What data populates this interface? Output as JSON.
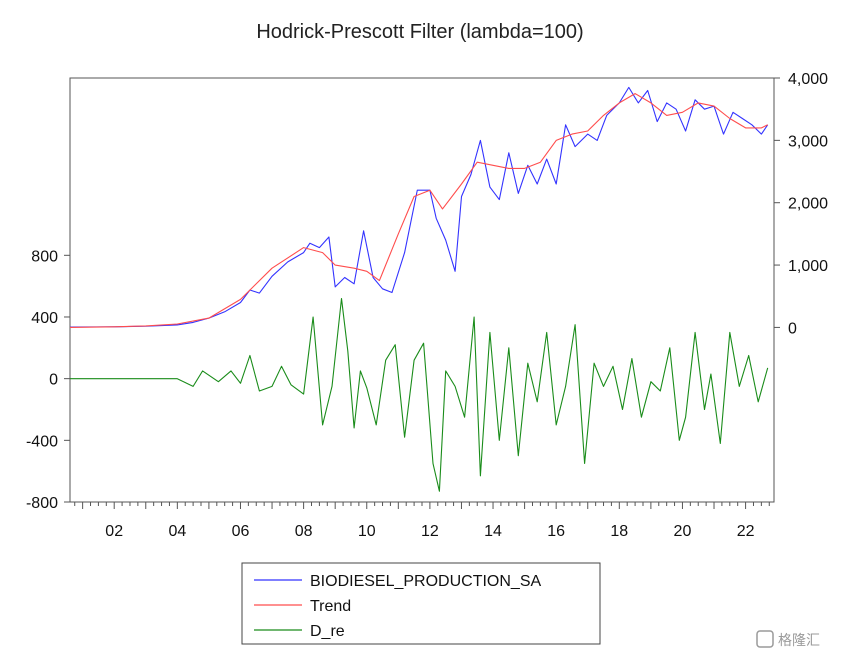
{
  "chart_data": {
    "type": "line",
    "title": "Hodrick-Prescott Filter (lambda=100)",
    "x_axis": {
      "tick_labels": [
        "02",
        "04",
        "06",
        "08",
        "10",
        "12",
        "14",
        "16",
        "18",
        "20",
        "22"
      ],
      "tick_years": [
        2002,
        2004,
        2006,
        2008,
        2010,
        2012,
        2014,
        2016,
        2018,
        2020,
        2022
      ],
      "range": [
        2000.6,
        2022.9
      ]
    },
    "y_left": {
      "tick_labels": [
        "800",
        "400",
        "0",
        "-400",
        "-800"
      ],
      "tick_values": [
        800,
        400,
        0,
        -400,
        -800
      ],
      "range": [
        -800,
        1950
      ]
    },
    "y_right": {
      "tick_labels": [
        "4,000",
        "3,000",
        "2,000",
        "1,000",
        "0"
      ],
      "tick_values": [
        4000,
        3000,
        2000,
        1000,
        0
      ],
      "range": [
        -2800,
        4000
      ]
    },
    "legend": {
      "placement": "bottom"
    },
    "colors": {
      "series": "#3333ff",
      "trend": "#ff4d4d",
      "cycle": "#1a8c1a",
      "frame": "#555555"
    },
    "series": [
      {
        "name": "BIODIESEL_PRODUCTION_SA",
        "axis": "right",
        "x": [
          2000.6,
          2002.0,
          2003.0,
          2004.0,
          2004.5,
          2005.0,
          2005.5,
          2006.0,
          2006.3,
          2006.6,
          2007.0,
          2007.5,
          2008.0,
          2008.2,
          2008.5,
          2008.8,
          2009.0,
          2009.3,
          2009.6,
          2009.9,
          2010.2,
          2010.5,
          2010.8,
          2011.2,
          2011.6,
          2012.0,
          2012.2,
          2012.5,
          2012.8,
          2013.0,
          2013.3,
          2013.6,
          2013.9,
          2014.2,
          2014.5,
          2014.8,
          2015.1,
          2015.4,
          2015.7,
          2016.0,
          2016.3,
          2016.6,
          2017.0,
          2017.3,
          2017.6,
          2018.0,
          2018.3,
          2018.6,
          2018.9,
          2019.2,
          2019.5,
          2019.8,
          2020.1,
          2020.4,
          2020.7,
          2021.0,
          2021.3,
          2021.6,
          2021.9,
          2022.2,
          2022.5,
          2022.7
        ],
        "y": [
          5,
          10,
          20,
          40,
          80,
          150,
          250,
          400,
          600,
          550,
          820,
          1050,
          1200,
          1350,
          1280,
          1450,
          650,
          800,
          700,
          1550,
          800,
          620,
          560,
          1200,
          2200,
          2200,
          1750,
          1400,
          900,
          2100,
          2450,
          3000,
          2250,
          2050,
          2800,
          2150,
          2600,
          2300,
          2700,
          2300,
          3250,
          2900,
          3100,
          3000,
          3400,
          3600,
          3850,
          3600,
          3800,
          3300,
          3600,
          3500,
          3150,
          3650,
          3500,
          3550,
          3100,
          3450,
          3350,
          3250,
          3100,
          3250
        ]
      },
      {
        "name": "Trend",
        "axis": "right",
        "x": [
          2000.6,
          2002.0,
          2003.0,
          2004.0,
          2005.0,
          2006.0,
          2007.0,
          2008.0,
          2008.6,
          2009.0,
          2009.6,
          2010.0,
          2010.4,
          2011.0,
          2011.5,
          2012.0,
          2012.4,
          2013.0,
          2013.5,
          2014.0,
          2014.5,
          2015.0,
          2015.5,
          2016.0,
          2016.5,
          2017.0,
          2017.5,
          2018.0,
          2018.5,
          2019.0,
          2019.5,
          2020.0,
          2020.5,
          2021.0,
          2021.5,
          2022.0,
          2022.5,
          2022.7
        ],
        "y": [
          0,
          10,
          25,
          55,
          150,
          450,
          950,
          1280,
          1200,
          1000,
          950,
          900,
          750,
          1500,
          2100,
          2200,
          1900,
          2300,
          2650,
          2600,
          2550,
          2550,
          2650,
          3000,
          3100,
          3150,
          3400,
          3600,
          3750,
          3600,
          3400,
          3450,
          3600,
          3550,
          3350,
          3200,
          3200,
          3250
        ]
      },
      {
        "name": "D_re",
        "axis": "left",
        "x": [
          2000.6,
          2002.0,
          2003.0,
          2004.0,
          2004.5,
          2004.8,
          2005.3,
          2005.7,
          2006.0,
          2006.3,
          2006.6,
          2007.0,
          2007.3,
          2007.6,
          2008.0,
          2008.3,
          2008.6,
          2008.9,
          2009.2,
          2009.4,
          2009.6,
          2009.8,
          2010.0,
          2010.3,
          2010.6,
          2010.9,
          2011.2,
          2011.5,
          2011.8,
          2012.1,
          2012.3,
          2012.5,
          2012.8,
          2013.1,
          2013.4,
          2013.6,
          2013.9,
          2014.2,
          2014.5,
          2014.8,
          2015.1,
          2015.4,
          2015.7,
          2016.0,
          2016.3,
          2016.6,
          2016.9,
          2017.2,
          2017.5,
          2017.8,
          2018.1,
          2018.4,
          2018.7,
          2019.0,
          2019.3,
          2019.6,
          2019.9,
          2020.1,
          2020.4,
          2020.7,
          2020.9,
          2021.2,
          2021.5,
          2021.8,
          2022.1,
          2022.4,
          2022.7
        ],
        "y": [
          0,
          0,
          0,
          0,
          -50,
          50,
          -20,
          50,
          -30,
          150,
          -80,
          -50,
          80,
          -40,
          -100,
          400,
          -300,
          -50,
          520,
          180,
          -320,
          50,
          -60,
          -300,
          120,
          220,
          -380,
          120,
          230,
          -550,
          -730,
          50,
          -50,
          -250,
          400,
          -630,
          300,
          -400,
          200,
          -500,
          100,
          -150,
          300,
          -300,
          -50,
          350,
          -550,
          100,
          -50,
          80,
          -200,
          130,
          -250,
          -20,
          -80,
          200,
          -400,
          -250,
          300,
          -200,
          30,
          -420,
          300,
          -50,
          150,
          -150,
          70
        ]
      }
    ],
    "watermark": "格隆汇"
  }
}
